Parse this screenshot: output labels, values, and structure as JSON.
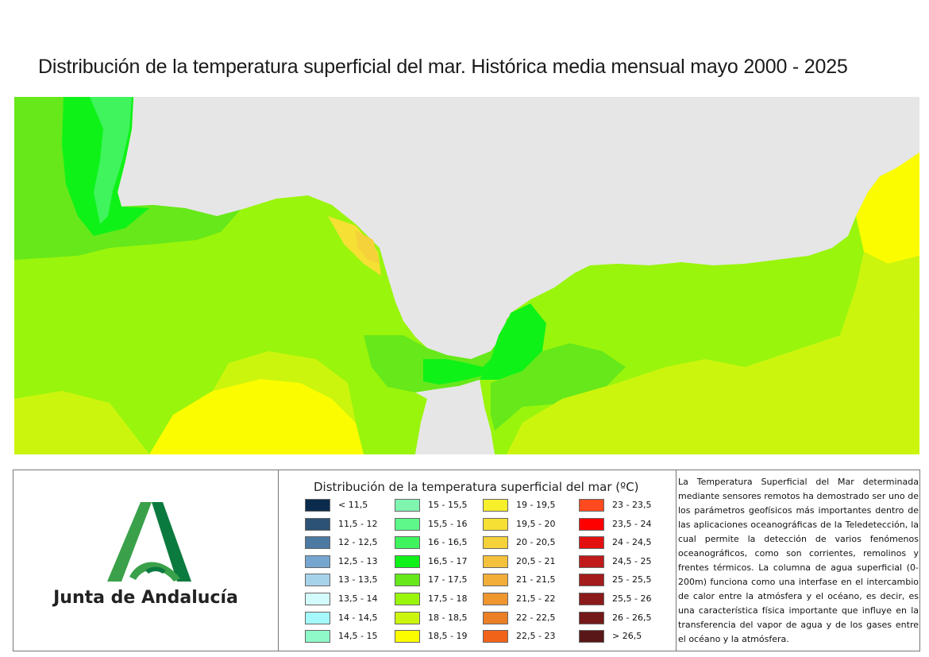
{
  "title": "Distribución de la temperatura superficial del mar. Histórica media mensual mayo 2000 - 2025",
  "map": {
    "land_color": "#e6e6e6",
    "dominant_classes": [
      "16,5 - 17",
      "17 - 17,5",
      "17,5 - 18",
      "18 - 18,5",
      "18,5 - 19",
      "19,5 - 20",
      "20 - 20,5"
    ]
  },
  "logo": {
    "text": "Junta de Andalucía",
    "color_dark": "#0b7a3e",
    "color_light": "#3aa14a"
  },
  "legend": {
    "title": "Distribución de la temperatura superficial del mar (ºC)",
    "columns": [
      [
        {
          "label": "< 11,5",
          "color": "#0a2b4c"
        },
        {
          "label": "11,5 - 12",
          "color": "#2c5275"
        },
        {
          "label": "12 - 12,5",
          "color": "#4c7aa3"
        },
        {
          "label": "12,5 - 13",
          "color": "#76a6d0"
        },
        {
          "label": "13 - 13,5",
          "color": "#a7d3ea"
        },
        {
          "label": "13,5 - 14",
          "color": "#d4fbfb"
        },
        {
          "label": "14 - 14,5",
          "color": "#a6f9fb"
        },
        {
          "label": "14,5 - 15",
          "color": "#8ff9c8"
        }
      ],
      [
        {
          "label": "15 - 15,5",
          "color": "#7ff5b0"
        },
        {
          "label": "15,5 - 16",
          "color": "#5df78a"
        },
        {
          "label": "16 - 16,5",
          "color": "#3ff45d"
        },
        {
          "label": "16,5 - 17",
          "color": "#0ff218"
        },
        {
          "label": "17 - 17,5",
          "color": "#66e81a"
        },
        {
          "label": "17,5 - 18",
          "color": "#99f50c"
        },
        {
          "label": "18 - 18,5",
          "color": "#ccf50e"
        },
        {
          "label": "18,5 - 19",
          "color": "#fcfc00"
        }
      ],
      [
        {
          "label": "19 - 19,5",
          "color": "#f7ee2c"
        },
        {
          "label": "19,5 - 20",
          "color": "#f6e034"
        },
        {
          "label": "20 - 20,5",
          "color": "#f5d13a"
        },
        {
          "label": "20,5 - 21",
          "color": "#f3c13b"
        },
        {
          "label": "21 - 21,5",
          "color": "#f2ae39"
        },
        {
          "label": "21,5 - 22",
          "color": "#ef962f"
        },
        {
          "label": "22 - 22,5",
          "color": "#ea7f25"
        },
        {
          "label": "22,5 - 23",
          "color": "#f2631a"
        }
      ],
      [
        {
          "label": "23 - 23,5",
          "color": "#ff4a1f"
        },
        {
          "label": "23,5 - 24",
          "color": "#ff0000"
        },
        {
          "label": "24 - 24,5",
          "color": "#e31010"
        },
        {
          "label": "24,5 - 25",
          "color": "#c01a1a"
        },
        {
          "label": "25 - 25,5",
          "color": "#a41c1c"
        },
        {
          "label": "25,5 - 26",
          "color": "#8b1a1a"
        },
        {
          "label": "26 - 26,5",
          "color": "#741818"
        },
        {
          "label": "> 26,5",
          "color": "#5a1717"
        }
      ]
    ]
  },
  "description": "La Temperatura Superficial del Mar determinada mediante sensores remotos ha demostrado ser uno de los parámetros geofísicos más importantes dentro de las aplicaciones oceanográficas de la Teledetección, la cual permite la detección de varios fenómenos oceanográficos, como son corrientes, remolinos y frentes térmicos. La columna de agua superficial (0-200m) funciona como una interfase en el intercambio de calor entre la atmósfera y el océano, es decir, es una característica física importante que influye en la transferencia del vapor de agua y de los gases entre el océano y la atmósfera."
}
